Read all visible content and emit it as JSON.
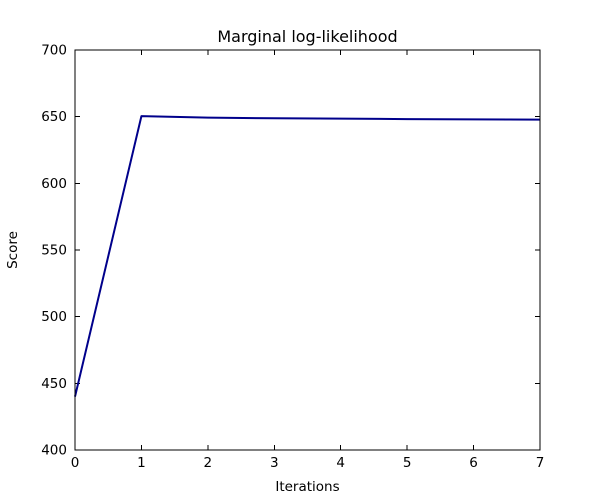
{
  "chart_data": {
    "type": "line",
    "title": "Marginal log-likelihood",
    "xlabel": "Iterations",
    "ylabel": "Score",
    "x": [
      0,
      1,
      2,
      3,
      4,
      5,
      6,
      7
    ],
    "values": [
      440.0,
      650.4,
      649.3,
      648.8,
      648.5,
      648.2,
      648.0,
      647.8
    ],
    "xlim": [
      0,
      7
    ],
    "ylim": [
      400,
      700
    ],
    "xticks": [
      0,
      1,
      2,
      3,
      4,
      5,
      6,
      7
    ],
    "yticks": [
      400,
      450,
      500,
      550,
      600,
      650,
      700
    ],
    "grid": false,
    "legend_position": "none",
    "tick_direction": "in",
    "line_color": "#00008b",
    "line_width": 2,
    "axis_color": "#000000",
    "text_color": "#000000",
    "background_color": "#ffffff"
  }
}
